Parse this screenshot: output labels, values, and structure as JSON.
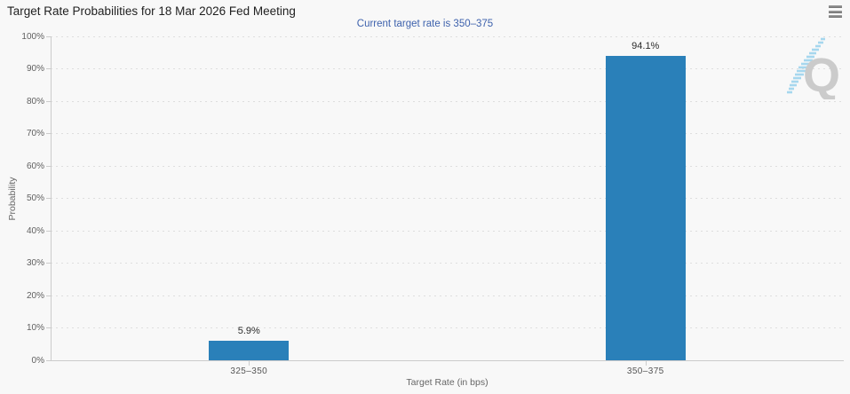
{
  "watermark": {
    "letter": "Q"
  },
  "menu": {
    "icon": "hamburger-menu"
  },
  "colors": {
    "background": "#f8f8f8",
    "bar": "#2a80b9",
    "subtitle": "#3e62ad",
    "grid": "#dedede",
    "axis": "#cccccc",
    "watermark_q": "#cbcbcb",
    "watermark_slash": "#a6d7ee"
  },
  "chart_data": {
    "type": "bar",
    "title": "Target Rate Probabilities for 18 Mar 2026 Fed Meeting",
    "subtitle": "Current target rate is 350–375",
    "categories": [
      "325–350",
      "350–375"
    ],
    "values": [
      5.9,
      94.1
    ],
    "data_labels": [
      "5.9%",
      "94.1%"
    ],
    "xlabel": "Target Rate (in bps)",
    "ylabel": "Probability",
    "ylim": [
      0,
      100
    ],
    "ytick_step": 10,
    "ytick_labels": [
      "0%",
      "10%",
      "20%",
      "30%",
      "40%",
      "50%",
      "60%",
      "70%",
      "80%",
      "90%",
      "100%"
    ],
    "grid": "horizontal-dotted",
    "legend": "none"
  }
}
